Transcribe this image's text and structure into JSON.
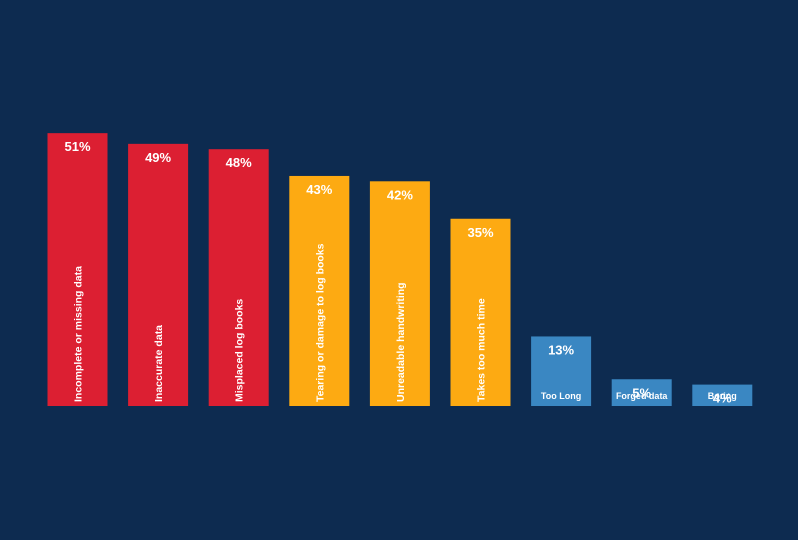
{
  "chart_data": {
    "type": "bar",
    "title": "",
    "xlabel": "",
    "ylabel": "",
    "ylim": [
      0,
      51
    ],
    "grid": false,
    "colors": {
      "background": "#0d2b50",
      "red": "#dc1f32",
      "orange": "#fdaa12",
      "blue": "#3a87c2",
      "text": "#ffffff"
    },
    "bars": [
      {
        "category": "Incomplete or missing data",
        "value": 51,
        "value_label": "51%",
        "color_group": "red"
      },
      {
        "category": "Inaccurate data",
        "value": 49,
        "value_label": "49%",
        "color_group": "red"
      },
      {
        "category": "Misplaced log books",
        "value": 48,
        "value_label": "48%",
        "color_group": "red"
      },
      {
        "category": "Tearing or damage to log books",
        "value": 43,
        "value_label": "43%",
        "color_group": "orange"
      },
      {
        "category": "Unreadable handwriting",
        "value": 42,
        "value_label": "42%",
        "color_group": "orange"
      },
      {
        "category": "Takes too much time",
        "value": 35,
        "value_label": "35%",
        "color_group": "orange"
      },
      {
        "category": "Too Long",
        "value": 13,
        "value_label": "13%",
        "color_group": "blue"
      },
      {
        "category": "Forged data",
        "value": 5,
        "value_label": "5%",
        "color_group": "blue"
      },
      {
        "category": "Boring",
        "value": 4,
        "value_label": "4%",
        "color_group": "blue"
      }
    ]
  }
}
